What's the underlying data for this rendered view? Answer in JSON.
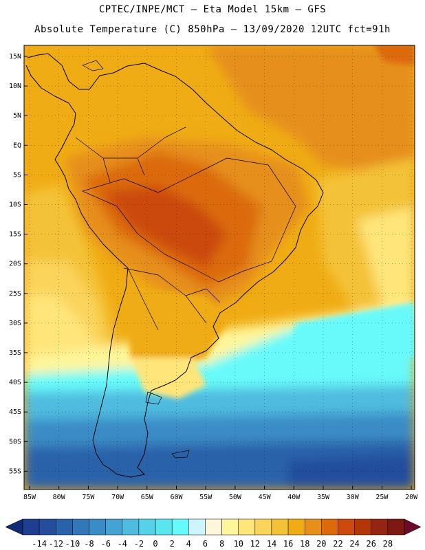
{
  "header": {
    "line1": "CPTEC/INPE/MCT —  Eta Model 15km — GFS",
    "line2": "Absolute Temperature (C) 850hPa — 13/09/2020 12UTC fct=91h"
  },
  "axes": {
    "lat_labels": [
      "15N",
      "10N",
      "5N",
      "EQ",
      "5S",
      "10S",
      "15S",
      "20S",
      "25S",
      "30S",
      "35S",
      "40S",
      "45S",
      "50S",
      "55S"
    ],
    "lon_labels": [
      "85W",
      "80W",
      "75W",
      "70W",
      "65W",
      "60W",
      "55W",
      "50W",
      "45W",
      "40W",
      "35W",
      "30W",
      "25W",
      "20W"
    ]
  },
  "colorbar": {
    "ticks": [
      "-14",
      "-12",
      "-10",
      "-8",
      "-6",
      "-4",
      "-2",
      "0",
      "2",
      "4",
      "6",
      "8",
      "10",
      "12",
      "14",
      "16",
      "18",
      "20",
      "22",
      "24",
      "26",
      "28"
    ],
    "colors": [
      "#1e3f8f",
      "#244e9c",
      "#2a62aa",
      "#3277b8",
      "#3a8cc6",
      "#45a3d3",
      "#4fbbdf",
      "#55d2ea",
      "#5ae6f0",
      "#67fafa",
      "#ccf6fb",
      "#fff6dc",
      "#fff59a",
      "#ffe57a",
      "#fbd45b",
      "#f4c237",
      "#f0ac14",
      "#e68f1b",
      "#dc6a0a",
      "#cb4a0c",
      "#b23606",
      "#962412",
      "#7e1812"
    ],
    "under_color": "#102a74",
    "over_color": "#6b0b2c"
  },
  "palette": {
    "frame": "#000000",
    "coast": "#000000"
  }
}
